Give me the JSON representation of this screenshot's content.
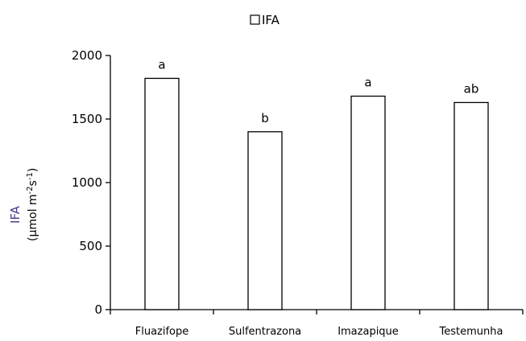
{
  "chart_data": {
    "type": "bar",
    "categories": [
      "Fluazifope",
      "Sulfentrazona",
      "Imazapique",
      "Testemunha"
    ],
    "series": [
      {
        "name": "IFA",
        "values": [
          1820,
          1400,
          1680,
          1630
        ]
      }
    ],
    "data_labels": [
      "a",
      "b",
      "a",
      "ab"
    ],
    "yticks": [
      0,
      500,
      1000,
      1500,
      2000
    ],
    "ylim": [
      0,
      2000
    ],
    "ylabel": "IFA",
    "ylabel_unit_parts": {
      "open": "(μmol m",
      "sup1": "-2",
      "mid": "s",
      "sup2": "-1",
      "close": ")"
    },
    "legend_position": "top-center",
    "grid": false,
    "colors": {
      "bar_fill": "#ffffff",
      "bar_stroke": "#000000",
      "ylabel": "#4a3a8a"
    }
  }
}
